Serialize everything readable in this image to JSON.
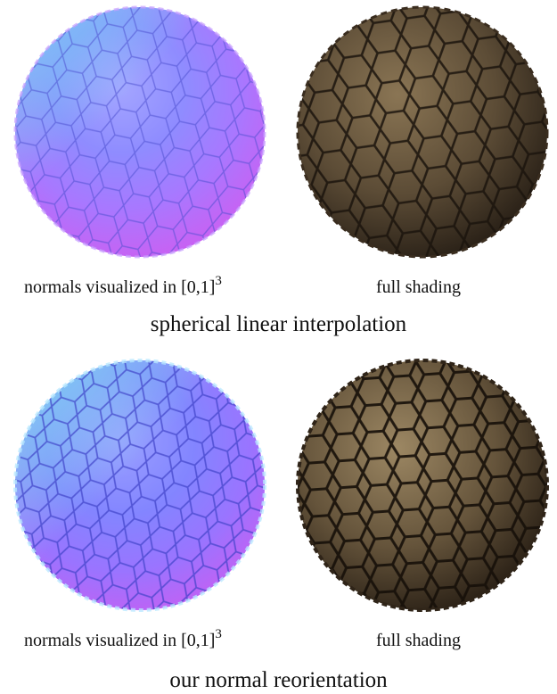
{
  "panels": [
    {
      "caption": "spherical linear interpolation",
      "left_label": {
        "text": "normals visualized in [0,1]",
        "superscript": "3"
      },
      "right_label": "full shading"
    },
    {
      "caption": "our normal reorientation",
      "left_label": {
        "text": "normals visualized in [0,1]",
        "superscript": "3"
      },
      "right_label": "full shading"
    }
  ],
  "images": [
    "normal-map-sphere",
    "shaded-stone-sphere"
  ],
  "colors": {
    "normal_blue": "#7f86ff",
    "normal_magenta": "#c25bf2",
    "normal_cyan": "#7fe6ee",
    "stone_dark": "#2a2118",
    "stone_mid": "#6b5a41",
    "stone_light": "#a89472"
  }
}
